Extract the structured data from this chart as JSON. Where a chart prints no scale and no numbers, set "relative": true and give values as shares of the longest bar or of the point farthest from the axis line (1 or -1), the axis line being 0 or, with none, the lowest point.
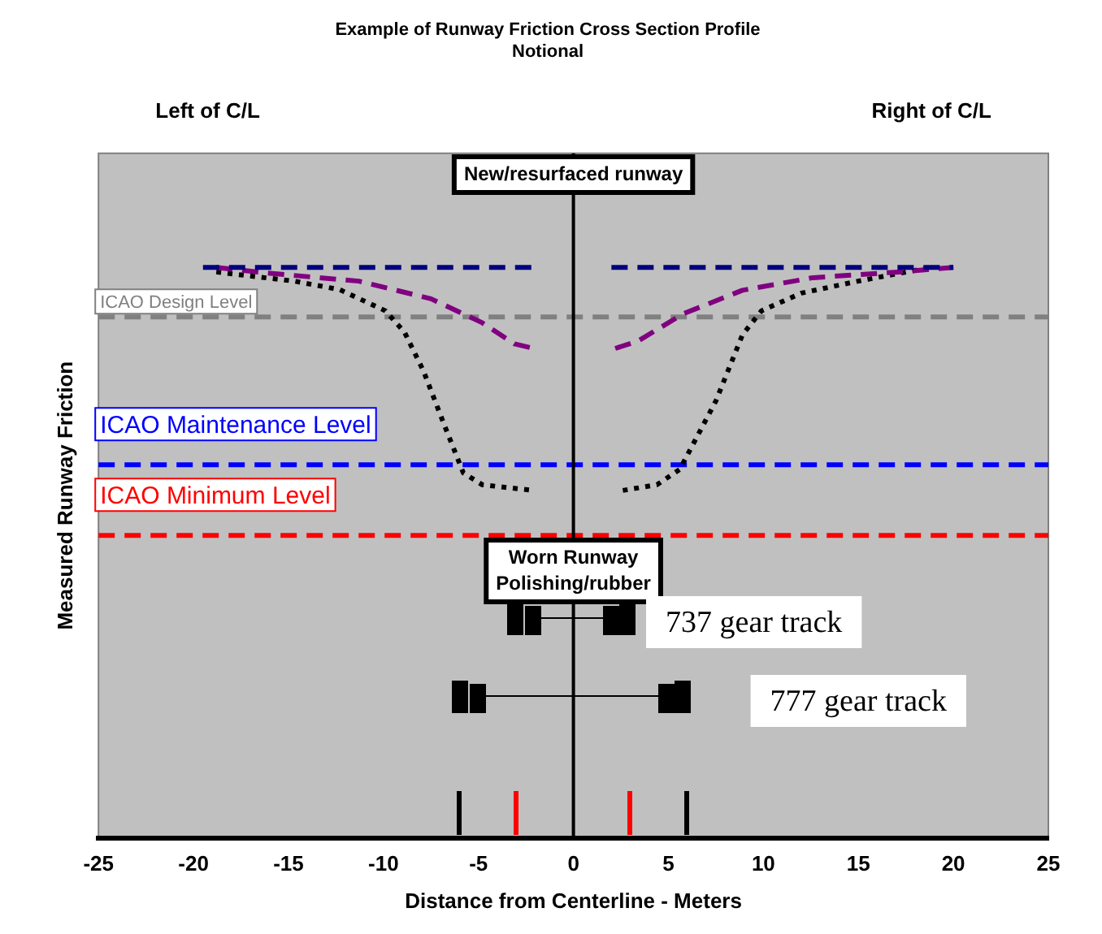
{
  "chart_data": {
    "type": "line",
    "title": "Example of Runway Friction Cross Section Profile",
    "subtitle": "Notional",
    "xlabel": "Distance from Centerline - Meters",
    "ylabel": "Measured Runway Friction",
    "relative": true,
    "xlim": [
      -25,
      25
    ],
    "xticks": [
      -25,
      -20,
      -15,
      -10,
      -5,
      0,
      5,
      10,
      15,
      20,
      25
    ],
    "grid": false,
    "legend": false,
    "marker": "none",
    "series": [
      {
        "color": "#000080",
        "line_style": "dashed",
        "x": [
          -19.5,
          -2,
          0,
          2,
          20
        ],
        "values": [
          1,
          1,
          null,
          1,
          1
        ]
      },
      {
        "color": "#800080",
        "line_style": "dashed",
        "x": [
          -18.8,
          -16.1,
          -11.3,
          -7.5,
          -4.8,
          -3.1,
          -2.1,
          0,
          2.2,
          3.4,
          5.8,
          8.9,
          12.6,
          17.1,
          20
        ],
        "values": [
          1,
          0.99,
          0.976,
          0.945,
          0.903,
          0.866,
          0.858,
          null,
          0.858,
          0.871,
          0.919,
          0.96,
          0.982,
          0.992,
          1
        ]
      },
      {
        "color": "#000000",
        "line_style": "dotted",
        "x": [
          -18.8,
          -14.7,
          -12.3,
          -9.9,
          -8.9,
          -7.9,
          -6.8,
          -5.8,
          -4.8,
          -2.1,
          0,
          2.6,
          4.4,
          5.6,
          7.5,
          8.9,
          9.9,
          12,
          15,
          18.8
        ],
        "values": [
          0.992,
          0.976,
          0.961,
          0.924,
          0.887,
          0.819,
          0.724,
          0.64,
          0.619,
          0.609,
          null,
          0.609,
          0.619,
          0.646,
          0.766,
          0.882,
          0.924,
          0.955,
          0.976,
          1
        ]
      }
    ],
    "ref_lines": [
      {
        "axis": "y",
        "value": 0.913,
        "label": "ICAO Design Level",
        "color": "#808080",
        "line_style": "dashed"
      },
      {
        "axis": "y",
        "value": 0.654,
        "label": "ICAO Maintenance Level",
        "color": "#0000ff",
        "line_style": "dashed"
      },
      {
        "axis": "y",
        "value": 0.53,
        "label": "ICAO Minimum Level",
        "color": "#ff0000",
        "line_style": "dashed"
      },
      {
        "axis": "x",
        "value": 0,
        "color": "#000000",
        "line_style": "solid"
      }
    ],
    "annotations": [
      "Left of C/L",
      "Right of C/L",
      "New/resurfaced runway",
      "Worn Runway\nPolishing/rubber",
      "737 gear track",
      "777 gear track"
    ]
  }
}
